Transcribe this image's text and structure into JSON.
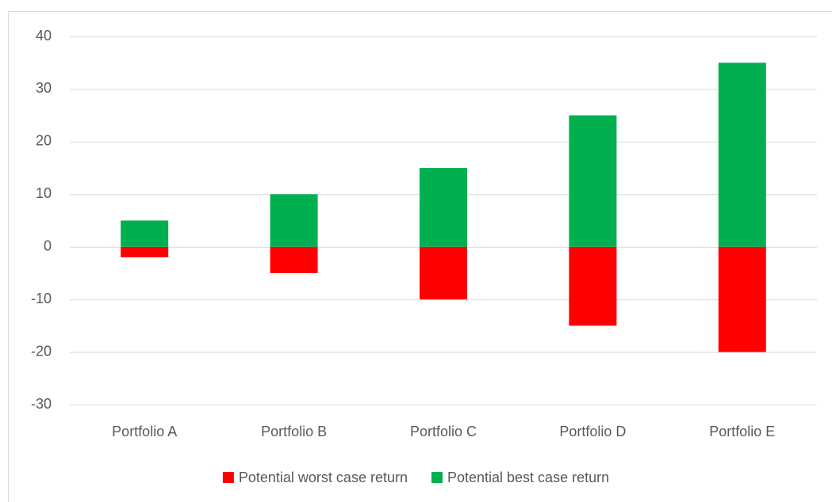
{
  "chart_data": {
    "type": "bar",
    "categories": [
      "Portfolio A",
      "Portfolio B",
      "Portfolio C",
      "Portfolio D",
      "Portfolio E"
    ],
    "series": [
      {
        "name": "Potential worst case return",
        "color": "#ff0000",
        "values": [
          -2,
          -5,
          -10,
          -15,
          -20
        ]
      },
      {
        "name": "Potential best case return",
        "color": "#00b050",
        "values": [
          5,
          10,
          15,
          25,
          35
        ]
      }
    ],
    "ylim": [
      -30,
      40
    ],
    "yticks": [
      -30,
      -20,
      -10,
      0,
      10,
      20,
      30,
      40
    ],
    "grid": true,
    "legend": "bottom"
  }
}
